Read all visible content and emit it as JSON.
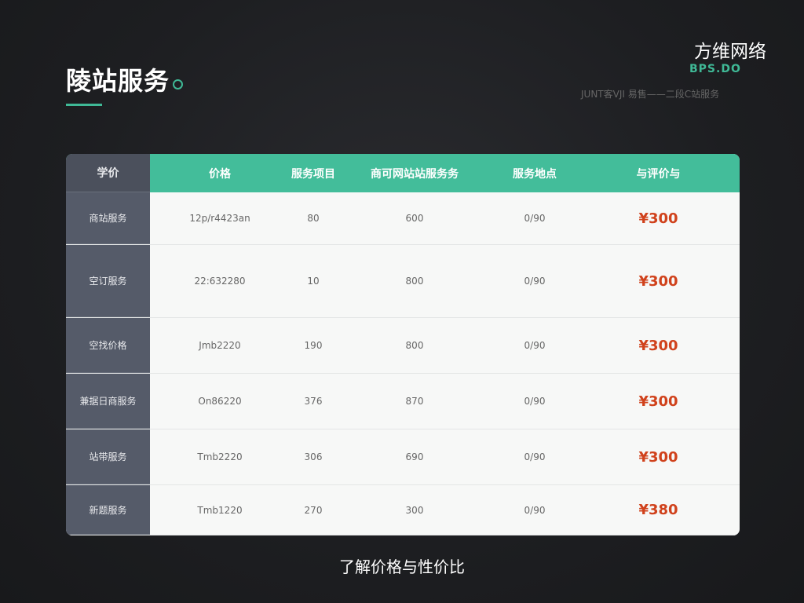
{
  "title": "陵站服务",
  "brand": {
    "name": "方维网络",
    "sub": "BPS.DO",
    "tag": "JUNT客VJI 易售——二段C站服务"
  },
  "table": {
    "headers": [
      "学价",
      "价格",
      "服务项目",
      "商可网站站服务务",
      "服务地点",
      "与评价与"
    ],
    "rows": [
      {
        "h": 67,
        "cells": [
          "商站服务",
          "12p/r4423an",
          "80",
          "600",
          "0/90",
          "¥300"
        ]
      },
      {
        "h": 93,
        "cells": [
          "空订服务",
          "22:632280",
          "10",
          "800",
          "0/90",
          "¥300"
        ]
      },
      {
        "h": 71,
        "cells": [
          "空找价格",
          "Jmb2220",
          "190",
          "800",
          "0/90",
          "¥300"
        ]
      },
      {
        "h": 71,
        "cells": [
          "兼据日商服务",
          "On86220",
          "376",
          "870",
          "0/90",
          "¥300"
        ]
      },
      {
        "h": 71,
        "cells": [
          "站带服务",
          "Tmb2220",
          "306",
          "690",
          "0/90",
          "¥300"
        ]
      },
      {
        "h": 64,
        "cells": [
          "新题服务",
          "Tmb1220",
          "270",
          "300",
          "0/90",
          "¥380"
        ]
      }
    ]
  },
  "caption": "了解价格与性价比",
  "colors": {
    "accent": "#43bd9a",
    "price": "#d0421c",
    "sidebar": "#555b69"
  }
}
